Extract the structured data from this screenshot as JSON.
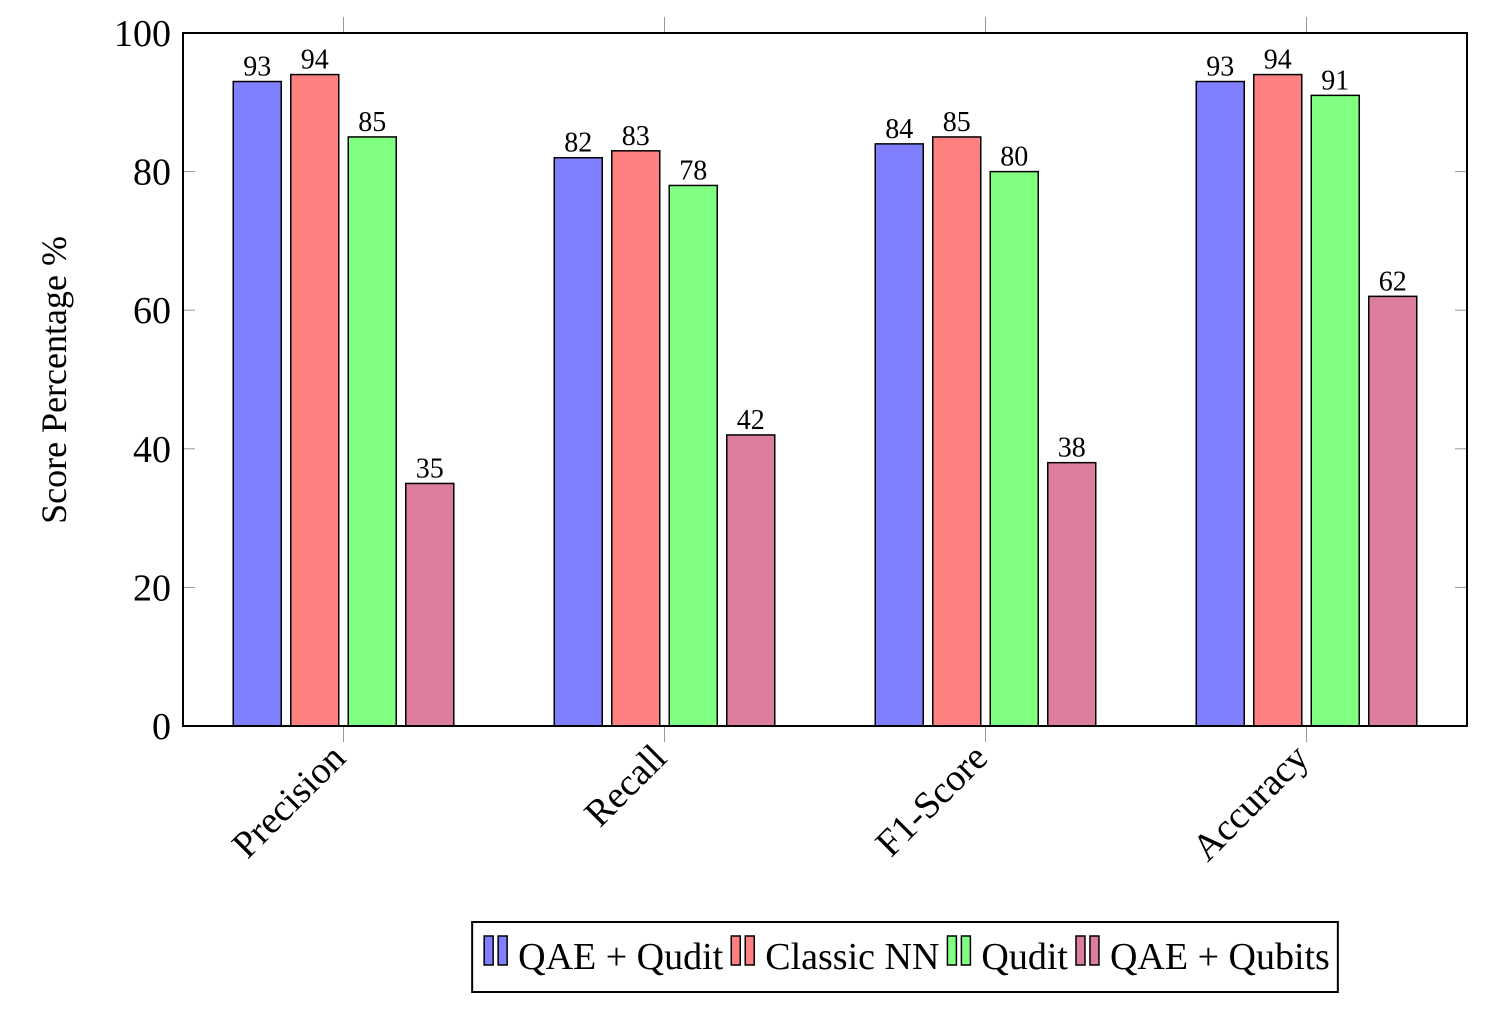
{
  "chart_data": {
    "type": "bar",
    "y_label": "Score Percentage %",
    "categories": [
      "Precision",
      "Recall",
      "F1-Score",
      "Accuracy"
    ],
    "series": [
      {
        "name": "QAE + Qudit",
        "color": "#8080ff",
        "values": [
          93,
          82,
          84,
          93
        ]
      },
      {
        "name": "Classic NN",
        "color": "#ff8080",
        "values": [
          94,
          83,
          85,
          94
        ]
      },
      {
        "name": "Qudit",
        "color": "#80ff80",
        "values": [
          85,
          78,
          80,
          91
        ]
      },
      {
        "name": "QAE + Qubits",
        "color": "#dc7d9c",
        "values": [
          35,
          42,
          38,
          62
        ]
      }
    ],
    "ylim": [
      0,
      100
    ],
    "yticks": [
      0,
      20,
      40,
      60,
      80,
      100
    ],
    "legend": "bottom"
  }
}
